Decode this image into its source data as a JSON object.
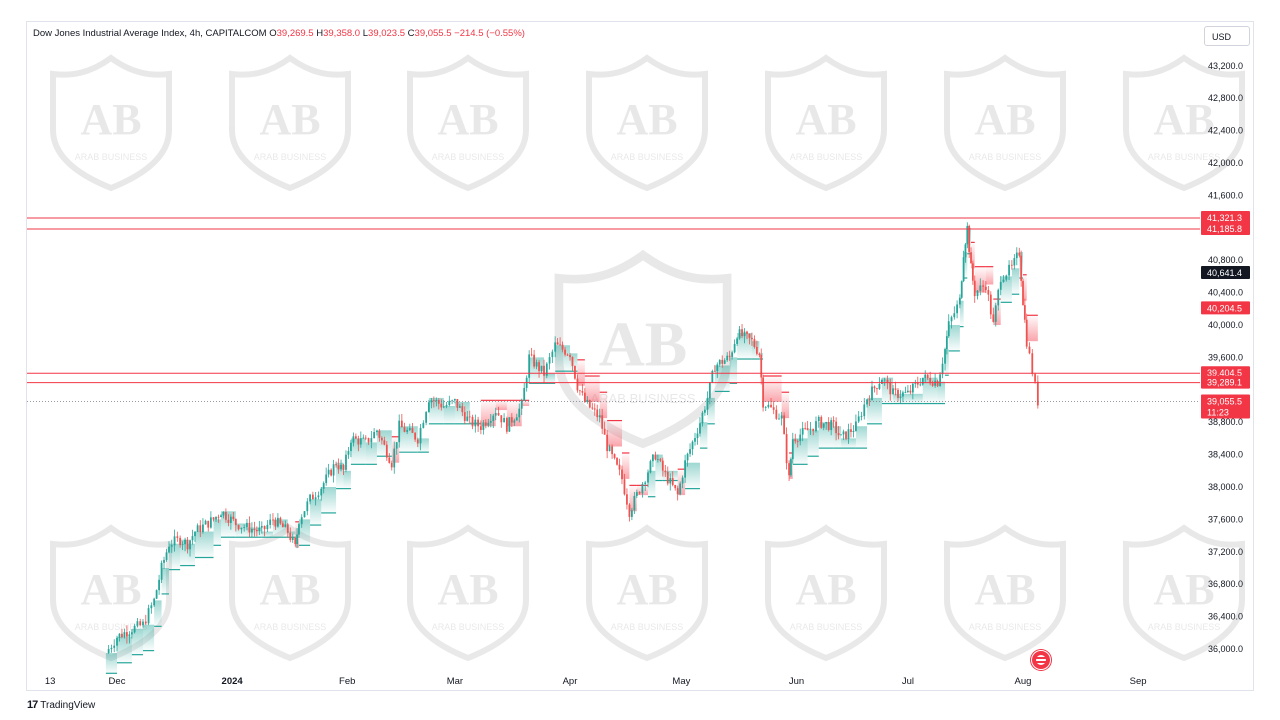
{
  "legend": {
    "title": "Dow Jones Industrial Average Index, 4h, CAPITALCOM",
    "o_label": "O",
    "o_value": "39,269.5",
    "h_label": "H",
    "h_value": "39,358.0",
    "l_label": "L",
    "l_value": "39,023.5",
    "c_label": "C",
    "c_value": "39,055.5",
    "change": "−214.5 (−0.55%)"
  },
  "currency_button": "USD",
  "branding": {
    "tradingview": "TradingView",
    "watermark": "ARAB BUSINESS"
  },
  "colors": {
    "up": "#26a69a",
    "down": "#ef5350",
    "band_up": "#26a69a",
    "band_down": "#f23645",
    "hline": "#f23645"
  },
  "chart_data": {
    "type": "candlestick",
    "title": "Dow Jones Industrial Average Index, 4h, CAPITALCOM",
    "ylim": [
      35800,
      43500
    ],
    "y_ticks": [
      43200,
      42800,
      42400,
      42000,
      41600,
      40800,
      40400,
      40000,
      39600,
      38800,
      38400,
      38000,
      37600,
      37200,
      36800,
      36400,
      36000
    ],
    "y_tick_labels": [
      "43,200.0",
      "42,800.0",
      "42,400.0",
      "42,000.0",
      "41,600.0",
      "40,800.0",
      "40,400.0",
      "40,000.0",
      "39,600.0",
      "38,800.0",
      "38,400.0",
      "38,000.0",
      "37,600.0",
      "37,200.0",
      "36,800.0",
      "36,400.0",
      "36,000.0"
    ],
    "x_ticks": [
      {
        "label": "13",
        "date": "2023-11-13"
      },
      {
        "label": "Dec",
        "date": "2023-12-01"
      },
      {
        "label": "2024",
        "date": "2024-01-01"
      },
      {
        "label": "Feb",
        "date": "2024-02-01"
      },
      {
        "label": "Mar",
        "date": "2024-03-01"
      },
      {
        "label": "Apr",
        "date": "2024-04-01"
      },
      {
        "label": "May",
        "date": "2024-05-01"
      },
      {
        "label": "Jun",
        "date": "2024-06-01"
      },
      {
        "label": "Jul",
        "date": "2024-07-01"
      },
      {
        "label": "Aug",
        "date": "2024-08-01"
      },
      {
        "label": "Sep",
        "date": "2024-09-01"
      }
    ],
    "x_range": [
      "2023-11-13",
      "2024-09-15"
    ],
    "horizontal_levels": [
      {
        "value": 41321.3,
        "label": "41,321.3"
      },
      {
        "value": 41185.8,
        "label": "41,185.8"
      },
      {
        "value": 39404.5,
        "label": "39,404.5"
      },
      {
        "value": 39289.1,
        "label": "39,289.1"
      }
    ],
    "price_tags": [
      {
        "value": 40641.4,
        "label": "40,641.4",
        "style": "dark"
      },
      {
        "value": 40204.5,
        "label": "40,204.5",
        "style": "red"
      }
    ],
    "last_price": {
      "value": 39055.5,
      "label": "39,055.5",
      "countdown": "11:23"
    },
    "close_series": [
      {
        "date": "2023-11-28",
        "close": 35950
      },
      {
        "date": "2023-12-01",
        "close": 36150
      },
      {
        "date": "2023-12-05",
        "close": 36250
      },
      {
        "date": "2023-12-08",
        "close": 36300
      },
      {
        "date": "2023-12-11",
        "close": 36600
      },
      {
        "date": "2023-12-13",
        "close": 37000
      },
      {
        "date": "2023-12-15",
        "close": 37300
      },
      {
        "date": "2023-12-18",
        "close": 37350
      },
      {
        "date": "2023-12-20",
        "close": 37300
      },
      {
        "date": "2023-12-22",
        "close": 37450
      },
      {
        "date": "2023-12-27",
        "close": 37600
      },
      {
        "date": "2023-12-29",
        "close": 37700
      },
      {
        "date": "2024-01-02",
        "close": 37550
      },
      {
        "date": "2024-01-05",
        "close": 37500
      },
      {
        "date": "2024-01-09",
        "close": 37450
      },
      {
        "date": "2024-01-12",
        "close": 37600
      },
      {
        "date": "2024-01-16",
        "close": 37450
      },
      {
        "date": "2024-01-18",
        "close": 37250
      },
      {
        "date": "2024-01-19",
        "close": 37600
      },
      {
        "date": "2024-01-22",
        "close": 37850
      },
      {
        "date": "2024-01-25",
        "close": 38000
      },
      {
        "date": "2024-01-29",
        "close": 38300
      },
      {
        "date": "2024-01-31",
        "close": 38200
      },
      {
        "date": "2024-02-02",
        "close": 38600
      },
      {
        "date": "2024-02-06",
        "close": 38550
      },
      {
        "date": "2024-02-09",
        "close": 38700
      },
      {
        "date": "2024-02-13",
        "close": 38300
      },
      {
        "date": "2024-02-15",
        "close": 38750
      },
      {
        "date": "2024-02-20",
        "close": 38600
      },
      {
        "date": "2024-02-23",
        "close": 39100
      },
      {
        "date": "2024-02-27",
        "close": 39000
      },
      {
        "date": "2024-03-01",
        "close": 39050
      },
      {
        "date": "2024-03-05",
        "close": 38800
      },
      {
        "date": "2024-03-08",
        "close": 38750
      },
      {
        "date": "2024-03-12",
        "close": 38950
      },
      {
        "date": "2024-03-15",
        "close": 38750
      },
      {
        "date": "2024-03-19",
        "close": 39000
      },
      {
        "date": "2024-03-21",
        "close": 39600
      },
      {
        "date": "2024-03-25",
        "close": 39400
      },
      {
        "date": "2024-03-28",
        "close": 39750
      },
      {
        "date": "2024-04-01",
        "close": 39650
      },
      {
        "date": "2024-04-03",
        "close": 39250
      },
      {
        "date": "2024-04-05",
        "close": 39050
      },
      {
        "date": "2024-04-09",
        "close": 38850
      },
      {
        "date": "2024-04-11",
        "close": 38500
      },
      {
        "date": "2024-04-15",
        "close": 38100
      },
      {
        "date": "2024-04-17",
        "close": 37700
      },
      {
        "date": "2024-04-19",
        "close": 37900
      },
      {
        "date": "2024-04-22",
        "close": 38200
      },
      {
        "date": "2024-04-24",
        "close": 38400
      },
      {
        "date": "2024-04-26",
        "close": 38200
      },
      {
        "date": "2024-04-30",
        "close": 37900
      },
      {
        "date": "2024-05-02",
        "close": 38300
      },
      {
        "date": "2024-05-06",
        "close": 38800
      },
      {
        "date": "2024-05-08",
        "close": 39100
      },
      {
        "date": "2024-05-10",
        "close": 39500
      },
      {
        "date": "2024-05-14",
        "close": 39600
      },
      {
        "date": "2024-05-16",
        "close": 39900
      },
      {
        "date": "2024-05-20",
        "close": 39800
      },
      {
        "date": "2024-05-22",
        "close": 39650
      },
      {
        "date": "2024-05-23",
        "close": 39050
      },
      {
        "date": "2024-05-28",
        "close": 38850
      },
      {
        "date": "2024-05-30",
        "close": 38100
      },
      {
        "date": "2024-05-31",
        "close": 38600
      },
      {
        "date": "2024-06-04",
        "close": 38700
      },
      {
        "date": "2024-06-07",
        "close": 38800
      },
      {
        "date": "2024-06-11",
        "close": 38750
      },
      {
        "date": "2024-06-13",
        "close": 38600
      },
      {
        "date": "2024-06-17",
        "close": 38750
      },
      {
        "date": "2024-06-20",
        "close": 39100
      },
      {
        "date": "2024-06-24",
        "close": 39350
      },
      {
        "date": "2024-06-27",
        "close": 39150
      },
      {
        "date": "2024-07-01",
        "close": 39150
      },
      {
        "date": "2024-07-05",
        "close": 39350
      },
      {
        "date": "2024-07-09",
        "close": 39300
      },
      {
        "date": "2024-07-11",
        "close": 39700
      },
      {
        "date": "2024-07-12",
        "close": 40000
      },
      {
        "date": "2024-07-15",
        "close": 40300
      },
      {
        "date": "2024-07-16",
        "close": 40900
      },
      {
        "date": "2024-07-17",
        "close": 41200
      },
      {
        "date": "2024-07-18",
        "close": 40700
      },
      {
        "date": "2024-07-19",
        "close": 40400
      },
      {
        "date": "2024-07-22",
        "close": 40500
      },
      {
        "date": "2024-07-24",
        "close": 40000
      },
      {
        "date": "2024-07-26",
        "close": 40600
      },
      {
        "date": "2024-07-29",
        "close": 40700
      },
      {
        "date": "2024-07-31",
        "close": 40900
      },
      {
        "date": "2024-08-01",
        "close": 40300
      },
      {
        "date": "2024-08-02",
        "close": 39800
      },
      {
        "date": "2024-08-05",
        "close": 39055.5
      }
    ]
  }
}
